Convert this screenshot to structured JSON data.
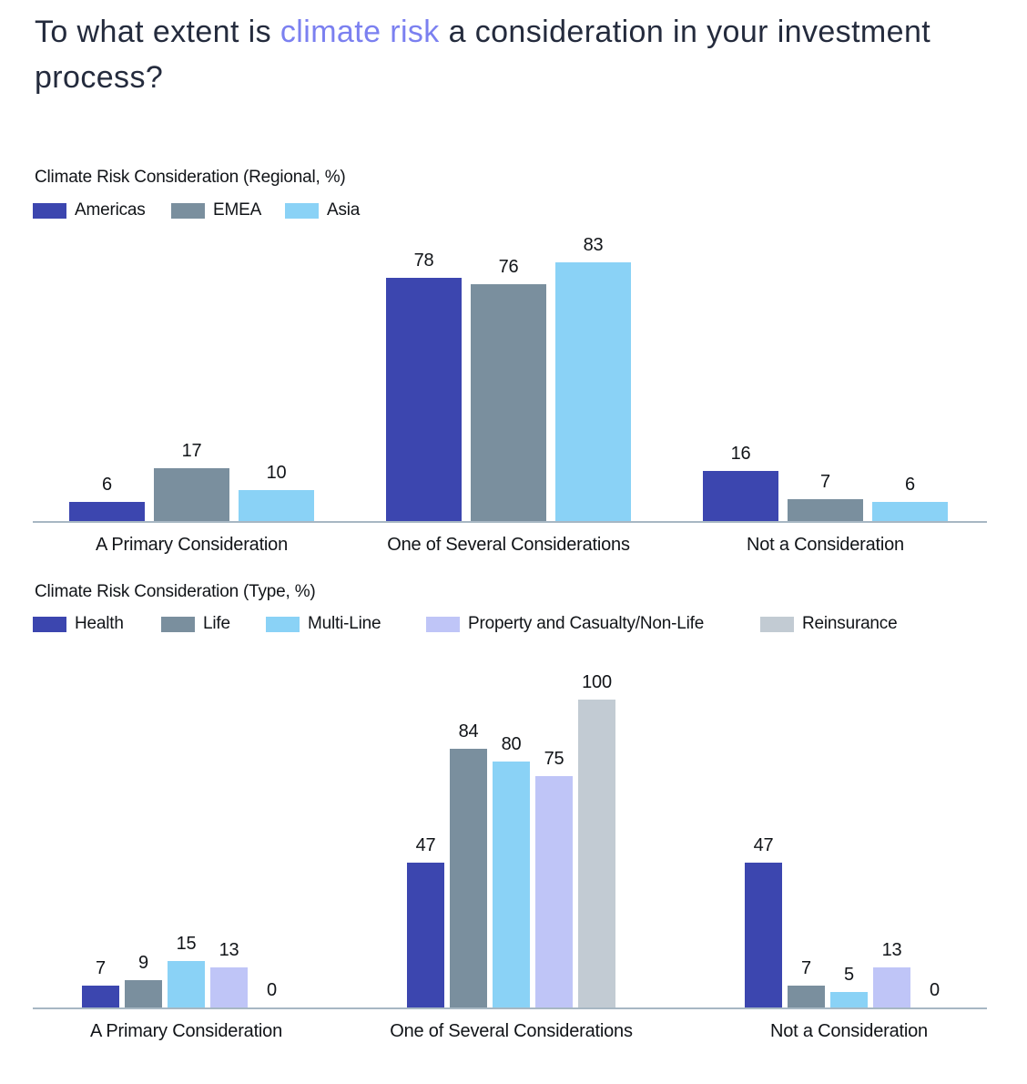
{
  "title": {
    "prefix": "To what extent is ",
    "highlight": "climate risk",
    "suffix": " a consideration in your investment process?"
  },
  "colors": {
    "title_text": "#242B3D",
    "title_highlight": "#7B80F0",
    "chart_text": "#111418",
    "axis_line": "#A7B7C3",
    "dark_blue": "#3C46AF",
    "slate_gray": "#7A8F9E",
    "light_blue": "#8AD2F6",
    "lavender": "#BFC5F7",
    "light_gray": "#C2CBD3"
  },
  "chart_data": [
    {
      "type": "bar",
      "title": "Climate Risk Consideration (Regional, %)",
      "categories": [
        "A Primary Consideration",
        "One of Several Considerations",
        "Not a Consideration"
      ],
      "series": [
        {
          "name": "Americas",
          "color": "#3C46AF",
          "values": [
            6,
            78,
            16
          ]
        },
        {
          "name": "EMEA",
          "color": "#7A8F9E",
          "values": [
            17,
            76,
            7
          ]
        },
        {
          "name": "Asia",
          "color": "#8AD2F6",
          "values": [
            10,
            83,
            6
          ]
        }
      ],
      "ylim": [
        0,
        100
      ],
      "grid": false,
      "legend_position": "top",
      "value_labels": true
    },
    {
      "type": "bar",
      "title": "Climate Risk Consideration (Type, %)",
      "categories": [
        "A Primary Consideration",
        "One of Several Considerations",
        "Not a Consideration"
      ],
      "series": [
        {
          "name": "Health",
          "color": "#3C46AF",
          "values": [
            7,
            47,
            47
          ]
        },
        {
          "name": "Life",
          "color": "#7A8F9E",
          "values": [
            9,
            84,
            7
          ]
        },
        {
          "name": "Multi-Line",
          "color": "#8AD2F6",
          "values": [
            15,
            80,
            5
          ]
        },
        {
          "name": "Property and Casualty/Non-Life",
          "color": "#BFC5F7",
          "values": [
            13,
            75,
            13
          ]
        },
        {
          "name": "Reinsurance",
          "color": "#C2CBD3",
          "values": [
            0,
            100,
            0
          ]
        }
      ],
      "ylim": [
        0,
        100
      ],
      "grid": false,
      "legend_position": "top",
      "value_labels": true
    }
  ]
}
